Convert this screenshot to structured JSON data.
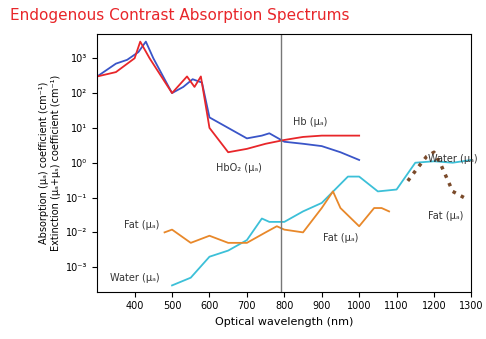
{
  "chart_data": {
    "type": "line",
    "title": "Endogenous Contrast Absorption Spectrums",
    "title_color": "#e8262a",
    "xlabel": "Optical wavelength (nm)",
    "ylabel": "Absorption (μₐ) coefficient (cm⁻¹)\nExtinction (μₐ+μₛ) coefficient (cm⁻¹)",
    "log": "y",
    "grid": false,
    "xlim": [
      300,
      1300
    ],
    "xticks": [
      400,
      500,
      600,
      700,
      800,
      900,
      1000,
      1100,
      1200,
      1300
    ],
    "ylim": [
      0.0002,
      5000
    ],
    "yticks": [
      {
        "value": 0.001,
        "label": "10⁻³"
      },
      {
        "value": 0.01,
        "label": "10⁻²"
      },
      {
        "value": 0.1,
        "label": "10⁻¹"
      },
      {
        "value": 1,
        "label": "10⁰"
      },
      {
        "value": 10,
        "label": "10¹"
      },
      {
        "value": 100,
        "label": "10²"
      },
      {
        "value": 1000,
        "label": "10³"
      }
    ],
    "vertical_line": 790,
    "series": [
      {
        "name": "Hb (μₐ)",
        "color": "#3a55c8",
        "line_style": "solid",
        "x": [
          300,
          350,
          380,
          410,
          430,
          450,
          500,
          530,
          555,
          580,
          600,
          650,
          700,
          740,
          760,
          800,
          850,
          900,
          950,
          1000
        ],
        "values": [
          300,
          700,
          900,
          1500,
          3000,
          1000,
          100,
          150,
          250,
          200,
          20,
          10,
          5,
          6,
          7,
          4,
          3.5,
          3,
          2,
          1.2
        ],
        "label_at": [
          [
            870,
            15
          ]
        ]
      },
      {
        "name": "HbO₂ (μₐ)",
        "color": "#e8262a",
        "line_style": "solid",
        "x": [
          300,
          350,
          400,
          415,
          440,
          500,
          540,
          560,
          577,
          600,
          650,
          700,
          750,
          800,
          850,
          900,
          950,
          1000
        ],
        "values": [
          300,
          400,
          1000,
          3000,
          1000,
          100,
          300,
          150,
          300,
          10,
          2,
          2.5,
          3.5,
          4.5,
          5.5,
          6,
          6,
          6
        ],
        "label_at": [
          [
            680,
            0.7
          ]
        ]
      },
      {
        "name": "Water (μₐ)",
        "color": "#3cc0d8",
        "line_style": "solid",
        "x": [
          500,
          550,
          600,
          650,
          700,
          740,
          760,
          800,
          850,
          900,
          970,
          1000,
          1050,
          1100,
          1150,
          1200,
          1250,
          1300
        ],
        "values": [
          0.0003,
          0.0005,
          0.002,
          0.003,
          0.006,
          0.025,
          0.02,
          0.02,
          0.04,
          0.07,
          0.4,
          0.4,
          0.15,
          0.17,
          1,
          1.1,
          1,
          1.2
        ],
        "label_at": [
          [
            1250,
            1.3
          ],
          [
            400,
            0.0005
          ]
        ]
      },
      {
        "name": "Fat (μₐ)",
        "color": "#e8882a",
        "line_style": "solid",
        "x": [
          480,
          500,
          550,
          600,
          650,
          700,
          750,
          780,
          800,
          850,
          900,
          930,
          950,
          1000,
          1040,
          1060,
          1080
        ],
        "values": [
          0.01,
          0.012,
          0.005,
          0.008,
          0.005,
          0.005,
          0.01,
          0.015,
          0.012,
          0.01,
          0.05,
          0.15,
          0.05,
          0.015,
          0.05,
          0.05,
          0.04
        ],
        "label_at": [
          [
            420,
            0.016
          ],
          [
            950,
            0.007
          ]
        ]
      },
      {
        "name": "Fat (μₐ)",
        "color": "#7a4a2a",
        "line_style": "dotted",
        "x": [
          1130,
          1160,
          1180,
          1200,
          1220,
          1250,
          1280
        ],
        "values": [
          0.3,
          0.8,
          1.5,
          2,
          0.8,
          0.15,
          0.1
        ],
        "label_at": [
          [
            1230,
            0.03
          ]
        ]
      }
    ]
  }
}
